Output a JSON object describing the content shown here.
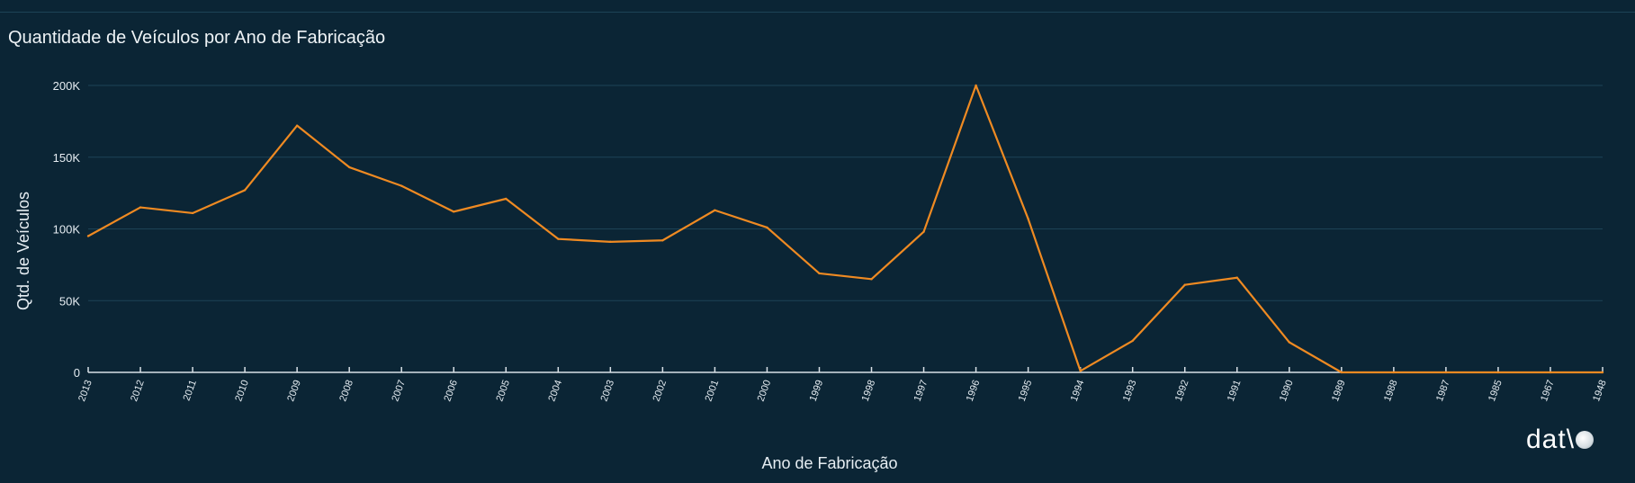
{
  "header": {
    "title": "Quantidade de Veículos por Ano de Fabricação"
  },
  "brand": {
    "text": "dat\\"
  },
  "colors": {
    "background": "#0b2535",
    "line": "#ef8a22",
    "grid": "#1d4356",
    "axis": "#d8e0e6",
    "text": "#e6edf2"
  },
  "chart_data": {
    "type": "line",
    "title": "Quantidade de Veículos por Ano de Fabricação",
    "xlabel": "Ano de Fabricação",
    "ylabel": "Qtd. de Veículos",
    "ylim": [
      0,
      200000
    ],
    "yticks": [
      0,
      50000,
      100000,
      150000,
      200000
    ],
    "ytick_labels": [
      "0",
      "50K",
      "100K",
      "150K",
      "200K"
    ],
    "grid": true,
    "categories": [
      "2013",
      "2012",
      "2011",
      "2010",
      "2009",
      "2008",
      "2007",
      "2006",
      "2005",
      "2004",
      "2003",
      "2002",
      "2001",
      "2000",
      "1999",
      "1998",
      "1997",
      "1996",
      "1995",
      "1994",
      "1993",
      "1992",
      "1991",
      "1990",
      "1989",
      "1988",
      "1987",
      "1985",
      "1967",
      "1948"
    ],
    "series": [
      {
        "values": [
          95000,
          115000,
          111000,
          127000,
          172000,
          143000,
          130000,
          112000,
          121000,
          93000,
          91000,
          92000,
          113000,
          101000,
          69000,
          65000,
          98000,
          200000,
          107000,
          1000,
          22000,
          61000,
          66000,
          21000,
          0,
          0,
          0,
          0,
          0,
          0
        ]
      }
    ]
  }
}
